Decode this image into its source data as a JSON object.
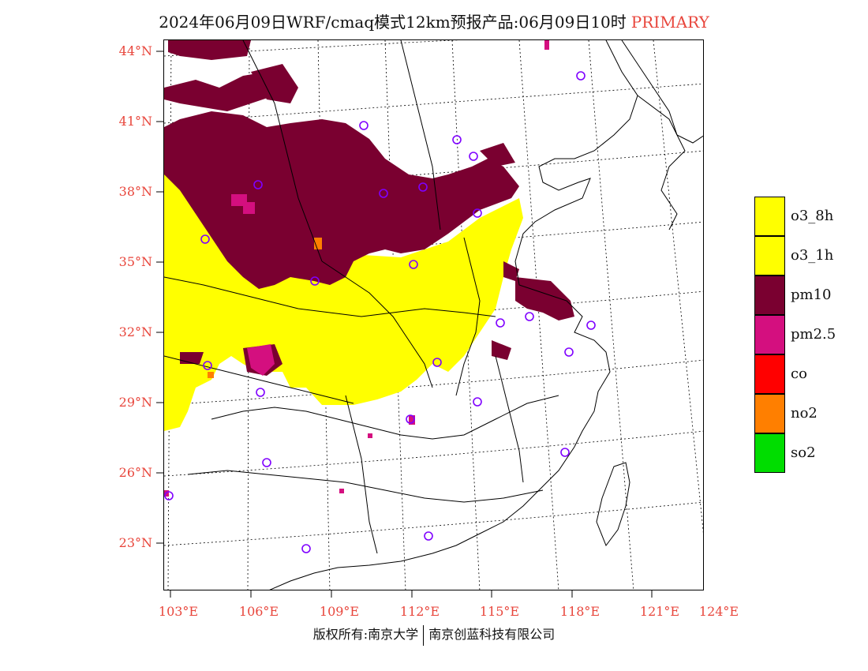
{
  "title": {
    "main": "2024年06月09日WRF/cmaq模式12km预报产品:06月09日10时",
    "tag": "PRIMARY"
  },
  "colors": {
    "label": "#e8463c",
    "o3_8h": "#ffff00",
    "o3_1h": "#ffff00",
    "pm10": "#7a0030",
    "pm2_5": "#d40f7f",
    "co": "#ff0000",
    "no2": "#ff7f00",
    "so2": "#00dd00",
    "station": "#7f00ff"
  },
  "lat_labels": [
    "44°N",
    "41°N",
    "38°N",
    "35°N",
    "32°N",
    "29°N",
    "26°N",
    "23°N"
  ],
  "lon_labels": [
    "103°E",
    "106°E",
    "109°E",
    "112°E",
    "115°E",
    "118°E",
    "121°E",
    "124°E"
  ],
  "legend": [
    {
      "label": "o3_8h",
      "color": "#ffff00"
    },
    {
      "label": "o3_1h",
      "color": "#ffff00"
    },
    {
      "label": "pm10",
      "color": "#7a0030"
    },
    {
      "label": "pm2.5",
      "color": "#d40f7f"
    },
    {
      "label": "co",
      "color": "#ff0000"
    },
    {
      "label": "no2",
      "color": "#ff7f00"
    },
    {
      "label": "so2",
      "color": "#00dd00"
    }
  ],
  "footer": {
    "left": "版权所有:南京大学",
    "right": "南京创蓝科技有限公司"
  }
}
